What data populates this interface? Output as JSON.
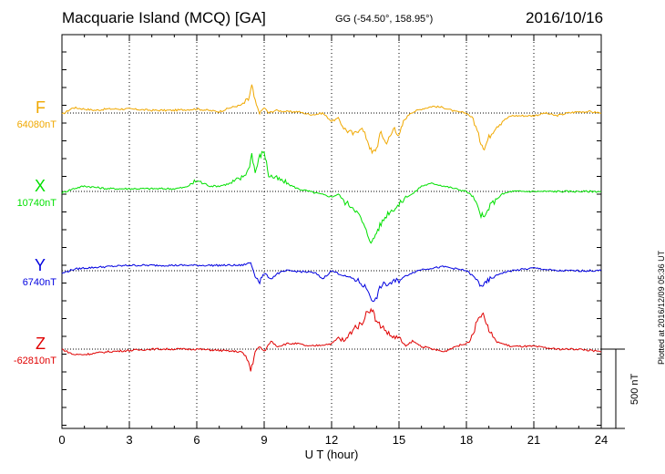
{
  "header": {
    "title": "Macquarie Island (MCQ)  [GA]",
    "coords": "GG (-54.50°, 158.95°)",
    "date": "2016/10/16"
  },
  "footer_note": "Plotted at 2016/12/09 05:36 UT",
  "chart_data": {
    "type": "line",
    "xlabel": "U T (hour)",
    "xlim": [
      0,
      24
    ],
    "xticks": [
      "0",
      "3",
      "6",
      "9",
      "12",
      "15",
      "18",
      "21",
      "24"
    ],
    "scale_bar_label": "500 nT",
    "scale_bar_nT": 500,
    "series": [
      {
        "name": "F",
        "baseline_label": "64080nT",
        "color": "#f0a800",
        "x": [
          0,
          0.5,
          1,
          1.5,
          2,
          3,
          4,
          5,
          6,
          7,
          7.5,
          8,
          8.3,
          8.45,
          8.6,
          8.8,
          9,
          9.2,
          9.5,
          10,
          10.5,
          11,
          11.3,
          11.6,
          12,
          12.3,
          12.6,
          13,
          13.3,
          13.6,
          13.8,
          14,
          14.2,
          14.4,
          14.6,
          14.8,
          15,
          15.2,
          15.5,
          16,
          16.5,
          17,
          17.5,
          18,
          18.3,
          18.6,
          18.8,
          19,
          19.3,
          19.6,
          20,
          20.5,
          21,
          21.5,
          22,
          22.5,
          23,
          23.5,
          24
        ],
        "y": [
          -10,
          40,
          30,
          20,
          30,
          30,
          20,
          20,
          30,
          10,
          40,
          60,
          100,
          200,
          80,
          0,
          40,
          0,
          20,
          10,
          10,
          -10,
          -10,
          0,
          -60,
          -40,
          -120,
          -160,
          -100,
          -200,
          -300,
          -260,
          -140,
          -220,
          -180,
          -100,
          -180,
          -60,
          0,
          30,
          50,
          40,
          10,
          0,
          -40,
          -200,
          -260,
          -180,
          -100,
          -60,
          -20,
          -20,
          -20,
          0,
          -20,
          0,
          10,
          10,
          0
        ]
      },
      {
        "name": "X",
        "baseline_label": "10740nT",
        "color": "#00e000",
        "x": [
          0,
          0.5,
          1,
          2,
          3,
          4,
          5,
          5.5,
          6,
          6.3,
          6.6,
          7,
          7.5,
          8,
          8.3,
          8.45,
          8.6,
          8.8,
          9,
          9.2,
          9.5,
          10,
          10.5,
          11,
          11.5,
          12,
          12.3,
          12.6,
          13,
          13.3,
          13.6,
          13.8,
          14,
          14.2,
          14.5,
          15,
          15.3,
          15.6,
          16,
          16.5,
          17,
          17.5,
          18,
          18.3,
          18.6,
          18.8,
          19,
          19.3,
          19.6,
          20,
          21,
          22,
          23,
          24
        ],
        "y": [
          -10,
          20,
          40,
          20,
          20,
          20,
          20,
          30,
          80,
          60,
          40,
          40,
          60,
          100,
          160,
          280,
          140,
          260,
          300,
          120,
          100,
          60,
          20,
          0,
          -20,
          -40,
          -20,
          -80,
          -120,
          -200,
          -320,
          -380,
          -300,
          -240,
          -160,
          -100,
          -40,
          -20,
          40,
          60,
          40,
          20,
          0,
          -40,
          -160,
          -200,
          -120,
          -60,
          -20,
          0,
          0,
          0,
          0,
          0
        ]
      },
      {
        "name": "Y",
        "baseline_label": "6740nT",
        "color": "#0000e0",
        "x": [
          0,
          0.5,
          1,
          2,
          3,
          4,
          5,
          6,
          7,
          8,
          8.4,
          8.6,
          8.8,
          9,
          9.3,
          9.6,
          10,
          11,
          11.3,
          11.6,
          12,
          12.3,
          12.6,
          13,
          13.3,
          13.6,
          13.9,
          14.2,
          14.5,
          15,
          15.5,
          16,
          17,
          18,
          18.3,
          18.6,
          18.8,
          19,
          19.5,
          20,
          21,
          22,
          23,
          24
        ],
        "y": [
          -20,
          10,
          20,
          30,
          40,
          40,
          40,
          40,
          40,
          40,
          60,
          -40,
          -80,
          -20,
          -60,
          -20,
          0,
          -10,
          -20,
          -60,
          0,
          -20,
          -40,
          -60,
          -90,
          -140,
          -240,
          -110,
          -100,
          -70,
          -20,
          10,
          30,
          0,
          -40,
          -100,
          -110,
          -70,
          -20,
          0,
          20,
          0,
          0,
          0
        ]
      },
      {
        "name": "Z",
        "baseline_label": "-62810nT",
        "color": "#e00000",
        "x": [
          0,
          0.5,
          1,
          2,
          3,
          4,
          5,
          6,
          7,
          8,
          8.3,
          8.4,
          8.6,
          8.8,
          9,
          9.3,
          9.6,
          10,
          10.5,
          11,
          11.5,
          12,
          12.3,
          12.6,
          13,
          13.3,
          13.6,
          13.8,
          14,
          14.3,
          14.6,
          15,
          15.3,
          15.6,
          16,
          16.5,
          17,
          17.5,
          18,
          18.3,
          18.6,
          18.8,
          19,
          19.3,
          19.6,
          20,
          21,
          22,
          23,
          24
        ],
        "y": [
          0,
          -40,
          -40,
          -20,
          -10,
          0,
          0,
          0,
          -10,
          -20,
          -90,
          -160,
          -20,
          20,
          -20,
          60,
          20,
          40,
          40,
          20,
          30,
          40,
          80,
          60,
          160,
          180,
          280,
          300,
          200,
          160,
          100,
          80,
          20,
          60,
          20,
          0,
          -20,
          20,
          40,
          120,
          260,
          240,
          140,
          60,
          40,
          20,
          20,
          0,
          0,
          -20
        ]
      }
    ]
  }
}
